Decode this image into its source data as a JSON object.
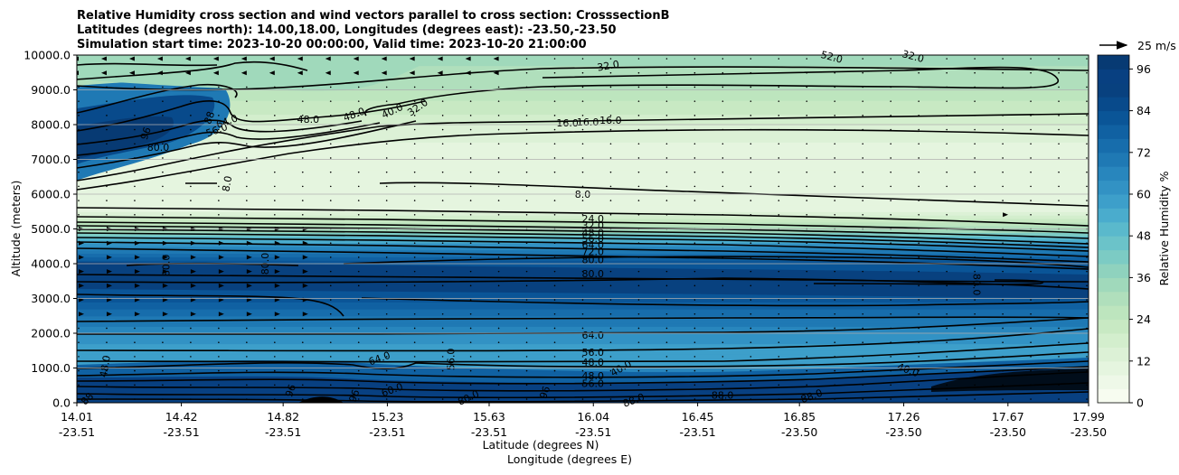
{
  "chart_data": {
    "type": "contour",
    "title_lines": [
      "Relative Humidity cross section and wind vectors parallel to cross section: CrosssectionB",
      "Latitudes (degrees north): 14.00,18.00, Longitudes (degrees east): -23.50,-23.50",
      "Simulation start time: 2023-10-20 00:00:00, Valid time: 2023-10-20 21:00:00"
    ],
    "ylabel": "Altitude (meters)",
    "xlabel_lines": [
      "Latitude (degrees N)",
      "Longitude (degrees E)"
    ],
    "ylim": [
      0,
      10000
    ],
    "y_ticks": [
      "0.0",
      "1000.0",
      "2000.0",
      "3000.0",
      "4000.0",
      "5000.0",
      "6000.0",
      "7000.0",
      "8000.0",
      "9000.0",
      "10000.0"
    ],
    "y_tick_values": [
      0,
      1000,
      2000,
      3000,
      4000,
      5000,
      6000,
      7000,
      8000,
      9000,
      10000
    ],
    "x_ticks": [
      {
        "lat": "14.01",
        "lon": "-23.51"
      },
      {
        "lat": "14.42",
        "lon": "-23.51"
      },
      {
        "lat": "14.82",
        "lon": "-23.51"
      },
      {
        "lat": "15.23",
        "lon": "-23.51"
      },
      {
        "lat": "15.63",
        "lon": "-23.51"
      },
      {
        "lat": "16.04",
        "lon": "-23.51"
      },
      {
        "lat": "16.45",
        "lon": "-23.51"
      },
      {
        "lat": "16.85",
        "lon": "-23.50"
      },
      {
        "lat": "17.26",
        "lon": "-23.50"
      },
      {
        "lat": "17.67",
        "lon": "-23.50"
      },
      {
        "lat": "17.99",
        "lon": "-23.50"
      }
    ],
    "xlim": [
      14.01,
      17.99
    ],
    "colorbar": {
      "label": "Relative Humidity %",
      "ticks": [
        "0",
        "12",
        "24",
        "36",
        "48",
        "60",
        "72",
        "84",
        "96"
      ],
      "tick_values": [
        0,
        12,
        24,
        36,
        48,
        60,
        72,
        84,
        96
      ],
      "range": [
        0,
        100
      ],
      "levels": 25,
      "colors": [
        "#f7fcf0",
        "#eef8e8",
        "#e5f5df",
        "#dcf1d6",
        "#d3eecd",
        "#c8e9c3",
        "#bde5be",
        "#b0dfbc",
        "#a0d9bb",
        "#8fd2be",
        "#7ccbc4",
        "#6bc3c9",
        "#5ab9cc",
        "#4aaccd",
        "#3d9fca",
        "#3292c4",
        "#2886bd",
        "#1f79b4",
        "#176dac",
        "#1061a2",
        "#0a5597",
        "#084a8b",
        "#08417f",
        "#084081",
        "#073a73"
      ]
    },
    "wind_reference": {
      "label": "25 m/s"
    },
    "rh_profile": [
      {
        "alt": 0,
        "rh": 94
      },
      {
        "alt": 300,
        "rh": 90
      },
      {
        "alt": 700,
        "rh": 86
      },
      {
        "alt": 1000,
        "rh": 60
      },
      {
        "alt": 1500,
        "rh": 56
      },
      {
        "alt": 2000,
        "rh": 64
      },
      {
        "alt": 2500,
        "rh": 72
      },
      {
        "alt": 3000,
        "rh": 82
      },
      {
        "alt": 3500,
        "rh": 84
      },
      {
        "alt": 4000,
        "rh": 82
      },
      {
        "alt": 4500,
        "rh": 66
      },
      {
        "alt": 5000,
        "rh": 30
      },
      {
        "alt": 5500,
        "rh": 12
      },
      {
        "alt": 6000,
        "rh": 8
      },
      {
        "alt": 7000,
        "rh": 8
      },
      {
        "alt": 8000,
        "rh": 16
      },
      {
        "alt": 9000,
        "rh": 28
      },
      {
        "alt": 10000,
        "rh": 34
      }
    ],
    "contour_labels": [
      {
        "text": "32.0",
        "lat": 16.1,
        "alt": 9700,
        "rot": -10
      },
      {
        "text": "52.0",
        "lat": 16.98,
        "alt": 9950,
        "rot": 15
      },
      {
        "text": "32.0",
        "lat": 17.3,
        "alt": 9970,
        "rot": 15
      },
      {
        "text": "16.0",
        "lat": 15.94,
        "alt": 8050,
        "rot": 0
      },
      {
        "text": "16.0",
        "lat": 16.02,
        "alt": 8080,
        "rot": 0
      },
      {
        "text": "16.0",
        "lat": 16.11,
        "alt": 8130,
        "rot": 0
      },
      {
        "text": "48.0",
        "lat": 14.92,
        "alt": 8150,
        "rot": 0
      },
      {
        "text": "48.0",
        "lat": 15.1,
        "alt": 8300,
        "rot": -20
      },
      {
        "text": "40.0",
        "lat": 15.25,
        "alt": 8400,
        "rot": -25
      },
      {
        "text": "32.0",
        "lat": 15.35,
        "alt": 8500,
        "rot": -35
      },
      {
        "text": "64.0",
        "lat": 14.6,
        "alt": 8100,
        "rot": -20
      },
      {
        "text": "56.0",
        "lat": 14.56,
        "alt": 7850,
        "rot": -20
      },
      {
        "text": "80.0",
        "lat": 14.33,
        "alt": 7350,
        "rot": 0
      },
      {
        "text": "96",
        "lat": 14.28,
        "alt": 7750,
        "rot": -70
      },
      {
        "text": "88",
        "lat": 14.53,
        "alt": 8200,
        "rot": -70
      },
      {
        "text": "8.0",
        "lat": 14.6,
        "alt": 6300,
        "rot": -80
      },
      {
        "text": "8.0",
        "lat": 16.0,
        "alt": 6000,
        "rot": 0
      },
      {
        "text": "24.0",
        "lat": 16.04,
        "alt": 5300,
        "rot": 0
      },
      {
        "text": "32.0",
        "lat": 16.04,
        "alt": 5100,
        "rot": 0
      },
      {
        "text": "48.0",
        "lat": 16.04,
        "alt": 4900,
        "rot": 0
      },
      {
        "text": "56.0",
        "lat": 16.04,
        "alt": 4730,
        "rot": 0
      },
      {
        "text": "64.0",
        "lat": 16.04,
        "alt": 4550,
        "rot": 0
      },
      {
        "text": "72.0",
        "lat": 16.04,
        "alt": 4350,
        "rot": 0
      },
      {
        "text": "80.0",
        "lat": 16.04,
        "alt": 4120,
        "rot": 0
      },
      {
        "text": "80.0",
        "lat": 16.04,
        "alt": 3720,
        "rot": 0
      },
      {
        "text": "80.0",
        "lat": 14.36,
        "alt": 3950,
        "rot": -90
      },
      {
        "text": "80.0",
        "lat": 14.75,
        "alt": 4000,
        "rot": -90
      },
      {
        "text": "80.0",
        "lat": 17.55,
        "alt": 3400,
        "rot": 90
      },
      {
        "text": "64.0",
        "lat": 16.04,
        "alt": 1950,
        "rot": 0
      },
      {
        "text": "56.0",
        "lat": 16.04,
        "alt": 1450,
        "rot": 0
      },
      {
        "text": "48.0",
        "lat": 16.04,
        "alt": 1170,
        "rot": 0
      },
      {
        "text": "48.0",
        "lat": 16.04,
        "alt": 780,
        "rot": 0
      },
      {
        "text": "56.0",
        "lat": 16.04,
        "alt": 560,
        "rot": 0
      },
      {
        "text": "64.0",
        "lat": 15.2,
        "alt": 1280,
        "rot": -20
      },
      {
        "text": "56.0",
        "lat": 15.48,
        "alt": 1250,
        "rot": -90
      },
      {
        "text": "40.0",
        "lat": 16.15,
        "alt": 1000,
        "rot": -30
      },
      {
        "text": "40.0",
        "lat": 17.28,
        "alt": 950,
        "rot": 20
      },
      {
        "text": "48.0",
        "lat": 14.12,
        "alt": 1050,
        "rot": -80
      },
      {
        "text": "80.0",
        "lat": 15.55,
        "alt": 150,
        "rot": -25
      },
      {
        "text": "88.0",
        "lat": 16.2,
        "alt": 80,
        "rot": -20
      },
      {
        "text": "88.0",
        "lat": 16.55,
        "alt": 220,
        "rot": 0
      },
      {
        "text": "88.0",
        "lat": 16.9,
        "alt": 200,
        "rot": -20
      },
      {
        "text": "60.0",
        "lat": 15.25,
        "alt": 380,
        "rot": -20
      },
      {
        "text": "96",
        "lat": 15.1,
        "alt": 200,
        "rot": -70
      },
      {
        "text": "96",
        "lat": 15.85,
        "alt": 300,
        "rot": -70
      },
      {
        "text": "96",
        "lat": 14.85,
        "alt": 350,
        "rot": -70
      },
      {
        "text": "88",
        "lat": 14.05,
        "alt": 120,
        "rot": -45
      }
    ]
  }
}
